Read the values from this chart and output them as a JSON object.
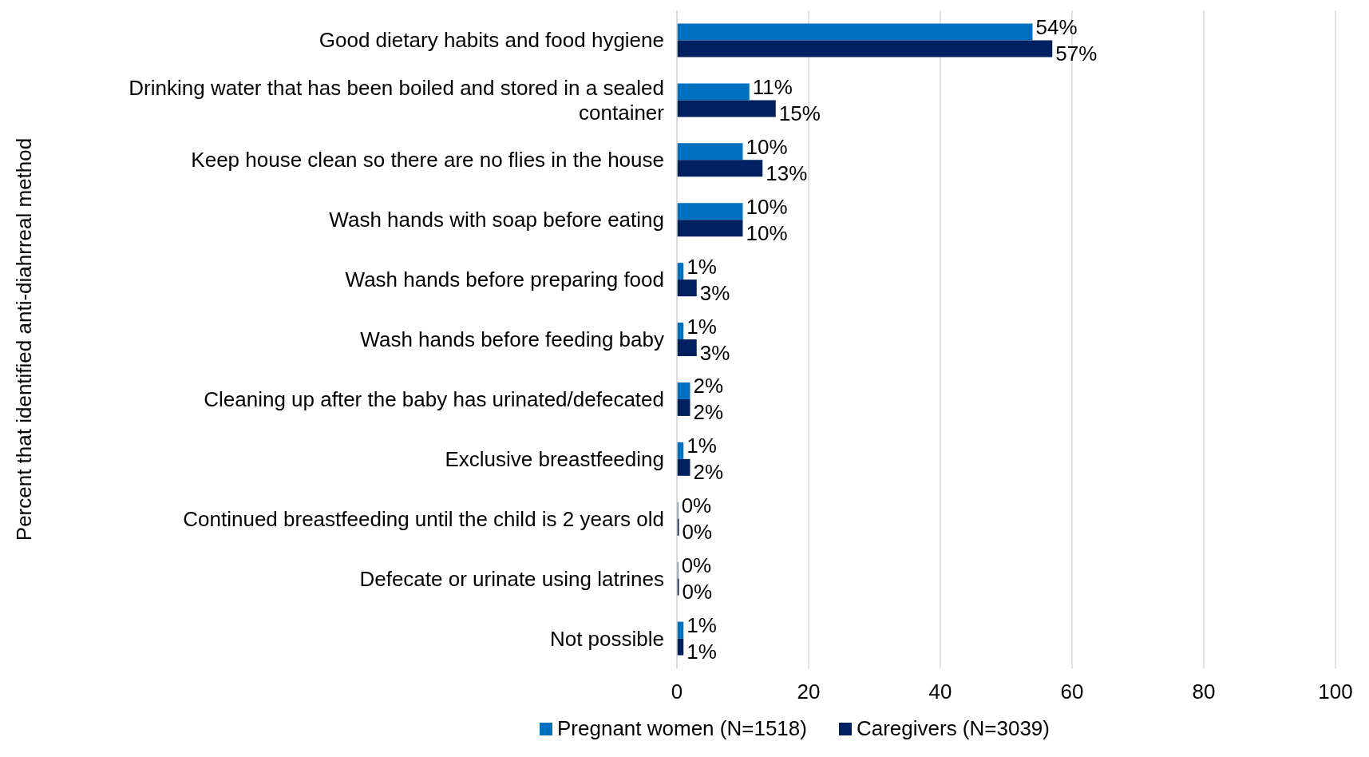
{
  "chart_data": {
    "type": "bar",
    "orientation": "horizontal",
    "ylabel": "Percent that identified anti-diahrreal method",
    "categories": [
      "Good dietary habits and food hygiene",
      "Drinking water that has been boiled and stored in a sealed container",
      "Keep house clean so there are no flies in the house",
      "Wash hands with soap before eating",
      "Wash hands before preparing food",
      "Wash hands before feeding baby",
      "Cleaning up after the baby has urinated/defecated",
      "Exclusive breastfeeding",
      "Continued breastfeeding until the child is 2 years old",
      "Defecate or urinate using latrines",
      "Not possible"
    ],
    "series": [
      {
        "name": "Pregnant women (N=1518)",
        "color": "#0070c0",
        "values": [
          54,
          11,
          10,
          10,
          1,
          1,
          2,
          1,
          0.2,
          0.2,
          1
        ],
        "value_labels": [
          "54%",
          "11%",
          "10%",
          "10%",
          "1%",
          "1%",
          "2%",
          "1%",
          "0%",
          "0%",
          "1%"
        ]
      },
      {
        "name": "Caregivers (N=3039)",
        "color": "#002060",
        "values": [
          57,
          15,
          13,
          10,
          3,
          3,
          2,
          2,
          0.3,
          0.3,
          1
        ],
        "value_labels": [
          "57%",
          "15%",
          "13%",
          "10%",
          "3%",
          "3%",
          "2%",
          "2%",
          "0%",
          "0%",
          "1%"
        ]
      }
    ],
    "xlim": [
      0,
      100
    ],
    "xticks": [
      0,
      20,
      40,
      60,
      80,
      100
    ],
    "grid": "x",
    "legend": "bottom"
  }
}
